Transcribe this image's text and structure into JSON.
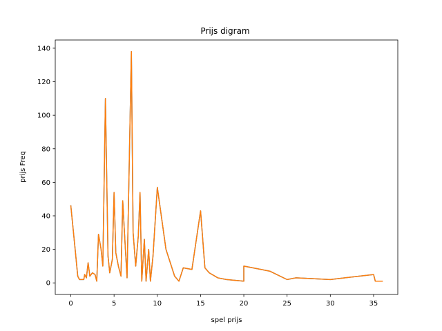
{
  "chart_data": {
    "type": "line",
    "title": "Prijs digram",
    "xlabel": "spel prijs",
    "ylabel": "prijs Freq",
    "xlim": [
      -1.8,
      37.8
    ],
    "ylim": [
      -6.9,
      144.9
    ],
    "xticks": [
      0,
      5,
      10,
      15,
      20,
      25,
      30,
      35
    ],
    "yticks": [
      0,
      20,
      40,
      60,
      80,
      100,
      120,
      140
    ],
    "grid": false,
    "series": [
      {
        "color": "#1f77b4",
        "x": [
          0,
          0.5,
          0.8,
          1.0,
          1.3,
          1.5,
          1.6,
          1.8,
          2.0,
          2.2,
          2.5,
          2.8,
          3.0,
          3.2,
          3.5,
          3.7,
          4.0,
          4.3,
          4.5,
          4.8,
          5.0,
          5.2,
          5.5,
          5.8,
          6.0,
          6.2,
          6.5,
          7.0,
          7.2,
          7.5,
          7.8,
          8.0,
          8.2,
          8.5,
          8.7,
          9.0,
          9.2,
          9.5,
          10.0,
          11.0,
          12.0,
          12.5,
          13.0,
          14.0,
          15.0,
          15.5,
          16.0,
          17.0,
          18.0,
          20.0,
          20.0,
          23.0,
          25.0,
          26.0,
          30.0,
          35.0,
          35.2,
          36.0
        ],
        "y": [
          46,
          20,
          4,
          2,
          2,
          2,
          5,
          3,
          12,
          4,
          6,
          5,
          1,
          29,
          20,
          10,
          110,
          16,
          6,
          14,
          54,
          18,
          10,
          4,
          49,
          30,
          3,
          138,
          30,
          10,
          28,
          54,
          1,
          26,
          1,
          20,
          1,
          16,
          57,
          20,
          4,
          1,
          9,
          8,
          43,
          9,
          6,
          3,
          2,
          1,
          10,
          7,
          2,
          3,
          2,
          5,
          1,
          1
        ]
      },
      {
        "color": "#ff7f0e",
        "x": [
          0,
          0.5,
          0.8,
          1.0,
          1.3,
          1.5,
          1.6,
          1.8,
          2.0,
          2.2,
          2.5,
          2.8,
          3.0,
          3.2,
          3.5,
          3.7,
          4.0,
          4.3,
          4.5,
          4.8,
          5.0,
          5.2,
          5.5,
          5.8,
          6.0,
          6.2,
          6.5,
          7.0,
          7.2,
          7.5,
          7.8,
          8.0,
          8.2,
          8.5,
          8.7,
          9.0,
          9.2,
          9.5,
          10.0,
          11.0,
          12.0,
          12.5,
          13.0,
          14.0,
          15.0,
          15.5,
          16.0,
          17.0,
          18.0,
          20.0,
          20.0,
          23.0,
          25.0,
          26.0,
          30.0,
          35.0,
          35.2,
          36.0
        ],
        "y": [
          46,
          20,
          4,
          2,
          2,
          2,
          5,
          3,
          12,
          4,
          6,
          5,
          1,
          29,
          20,
          10,
          110,
          16,
          6,
          14,
          54,
          18,
          10,
          4,
          49,
          30,
          3,
          138,
          30,
          10,
          28,
          54,
          1,
          26,
          1,
          20,
          1,
          16,
          57,
          20,
          4,
          1,
          9,
          8,
          43,
          9,
          6,
          3,
          2,
          1,
          10,
          7,
          2,
          3,
          2,
          5,
          1,
          1
        ]
      }
    ]
  }
}
